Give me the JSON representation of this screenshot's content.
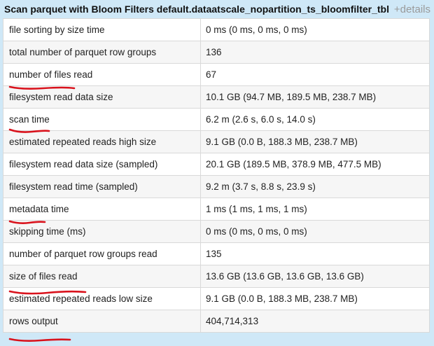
{
  "header": {
    "title": "Scan parquet with Bloom Filters default.dataatscale_nopartition_ts_bloomfilter_tbl",
    "details_link": "+details"
  },
  "metrics": [
    {
      "name": "file sorting by size time",
      "value": "0 ms (0 ms, 0 ms, 0 ms)"
    },
    {
      "name": "total number of parquet row groups",
      "value": "136"
    },
    {
      "name": "number of files read",
      "value": "67"
    },
    {
      "name": "filesystem read data size",
      "value": "10.1 GB (94.7 MB, 189.5 MB, 238.7 MB)"
    },
    {
      "name": "scan time",
      "value": "6.2 m (2.6 s, 6.0 s, 14.0 s)"
    },
    {
      "name": "estimated repeated reads high size",
      "value": "9.1 GB (0.0 B, 188.3 MB, 238.7 MB)"
    },
    {
      "name": "filesystem read data size (sampled)",
      "value": "20.1 GB (189.5 MB, 378.9 MB, 477.5 MB)"
    },
    {
      "name": "filesystem read time (sampled)",
      "value": "9.2 m (3.7 s, 8.8 s, 23.9 s)"
    },
    {
      "name": "metadata time",
      "value": "1 ms (1 ms, 1 ms, 1 ms)"
    },
    {
      "name": "skipping time (ms)",
      "value": "0 ms (0 ms, 0 ms, 0 ms)"
    },
    {
      "name": "number of parquet row groups read",
      "value": "135"
    },
    {
      "name": "size of files read",
      "value": "13.6 GB (13.6 GB, 13.6 GB, 13.6 GB)"
    },
    {
      "name": "estimated repeated reads low size",
      "value": "9.1 GB (0.0 B, 188.3 MB, 238.7 MB)"
    },
    {
      "name": "rows output",
      "value": "404,714,313"
    }
  ],
  "colors": {
    "panel_background": "#cfe8f7",
    "annotation_underline": "#d9121c",
    "row_stripe": "#f6f6f6"
  }
}
